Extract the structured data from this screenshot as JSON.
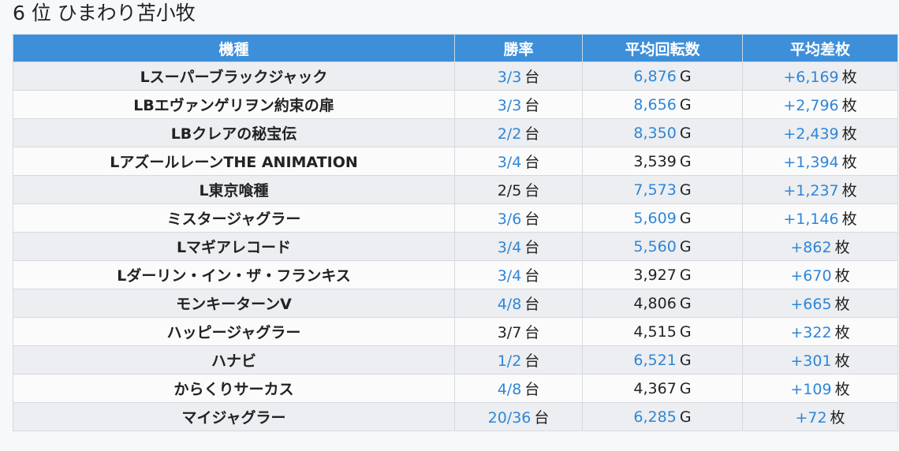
{
  "title": "6 位 ひまわり苫小牧",
  "table": {
    "headers": [
      "機種",
      "勝率",
      "平均回転数",
      "平均差枚"
    ],
    "win_unit": "台",
    "spin_unit": "G",
    "diff_unit": "枚",
    "link_color": "#2f86d6",
    "header_color": "#3d8fd9",
    "rows": [
      {
        "name": "Lスーパーブラックジャック",
        "win": "3/3",
        "win_hl": true,
        "spins": "6,876",
        "spins_hl": true,
        "diff": "+6,169",
        "diff_hl": true
      },
      {
        "name": "LBエヴァンゲリヲン約束の扉",
        "win": "3/3",
        "win_hl": true,
        "spins": "8,656",
        "spins_hl": true,
        "diff": "+2,796",
        "diff_hl": true
      },
      {
        "name": "LBクレアの秘宝伝",
        "win": "2/2",
        "win_hl": true,
        "spins": "8,350",
        "spins_hl": true,
        "diff": "+2,439",
        "diff_hl": true
      },
      {
        "name": "LアズールレーンTHE ANIMATION",
        "win": "3/4",
        "win_hl": true,
        "spins": "3,539",
        "spins_hl": false,
        "diff": "+1,394",
        "diff_hl": true
      },
      {
        "name": "L東京喰種",
        "win": "2/5",
        "win_hl": false,
        "spins": "7,573",
        "spins_hl": true,
        "diff": "+1,237",
        "diff_hl": true
      },
      {
        "name": "ミスタージャグラー",
        "win": "3/6",
        "win_hl": true,
        "spins": "5,609",
        "spins_hl": true,
        "diff": "+1,146",
        "diff_hl": true
      },
      {
        "name": "Lマギアレコード",
        "win": "3/4",
        "win_hl": true,
        "spins": "5,560",
        "spins_hl": true,
        "diff": "+862",
        "diff_hl": true
      },
      {
        "name": "Lダーリン・イン・ザ・フランキス",
        "win": "3/4",
        "win_hl": true,
        "spins": "3,927",
        "spins_hl": false,
        "diff": "+670",
        "diff_hl": true
      },
      {
        "name": "モンキーターンV",
        "win": "4/8",
        "win_hl": true,
        "spins": "4,806",
        "spins_hl": false,
        "diff": "+665",
        "diff_hl": true
      },
      {
        "name": "ハッピージャグラー",
        "win": "3/7",
        "win_hl": false,
        "spins": "4,515",
        "spins_hl": false,
        "diff": "+322",
        "diff_hl": true
      },
      {
        "name": "ハナビ",
        "win": "1/2",
        "win_hl": true,
        "spins": "6,521",
        "spins_hl": true,
        "diff": "+301",
        "diff_hl": true
      },
      {
        "name": "からくりサーカス",
        "win": "4/8",
        "win_hl": true,
        "spins": "4,367",
        "spins_hl": false,
        "diff": "+109",
        "diff_hl": true
      },
      {
        "name": "マイジャグラー",
        "win": "20/36",
        "win_hl": true,
        "spins": "6,285",
        "spins_hl": true,
        "diff": "+72",
        "diff_hl": true
      }
    ]
  }
}
